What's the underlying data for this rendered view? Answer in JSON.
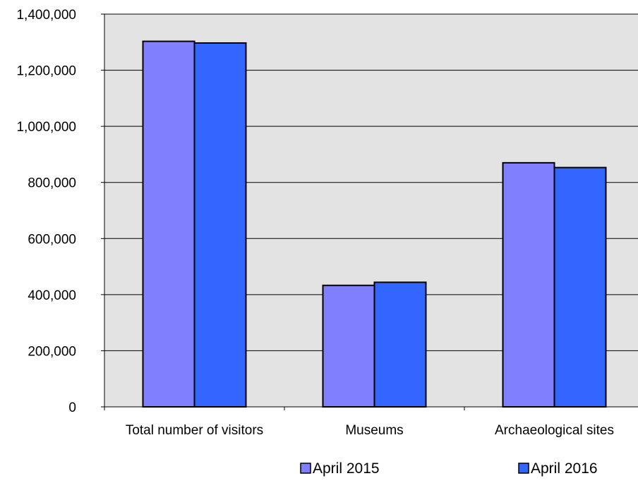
{
  "chart_data": {
    "type": "bar",
    "categories": [
      "Total number of visitors",
      "Museums",
      "Archaeological sites"
    ],
    "series": [
      {
        "name": "April 2015",
        "values": [
          1303000,
          433000,
          870000
        ]
      },
      {
        "name": "April 2016",
        "values": [
          1297000,
          444000,
          853000
        ]
      }
    ],
    "ylim": [
      0,
      1400000
    ],
    "yticks": [
      0,
      200000,
      400000,
      600000,
      800000,
      1000000,
      1200000,
      1400000
    ],
    "ytick_labels": [
      "0",
      "200,000",
      "400,000",
      "600,000",
      "800,000",
      "1,000,000",
      "1,200,000",
      "1,400,000"
    ],
    "title": "",
    "xlabel": "",
    "ylabel": "",
    "grid": "horizontal",
    "legend_position": "bottom",
    "colors": {
      "series": [
        "#8080ff",
        "#3366ff"
      ],
      "plot_background": "#e3e3e3",
      "grid": "#000000",
      "border": "#000000"
    }
  }
}
